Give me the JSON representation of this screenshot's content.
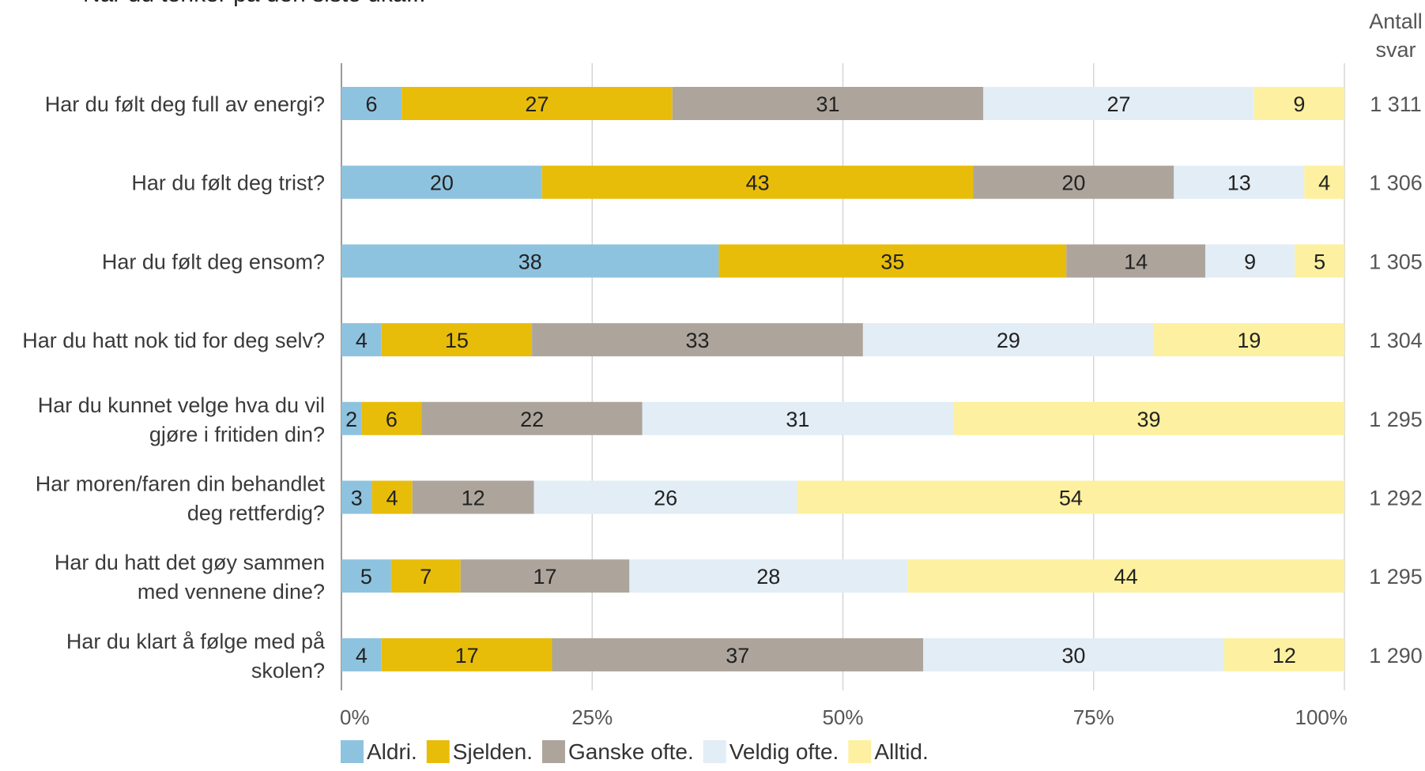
{
  "chart_data": {
    "type": "bar",
    "orientation": "horizontal",
    "stacked": true,
    "title": "Når du tenker på den siste uka...",
    "count_header": [
      "Antall",
      "svar"
    ],
    "categories": [
      [
        "Har du følt deg full av energi?"
      ],
      [
        "Har du følt deg trist?"
      ],
      [
        "Har du følt deg ensom?"
      ],
      [
        "Har du hatt nok tid for deg selv?"
      ],
      [
        "Har du kunnet velge hva du vil",
        "gjøre i fritiden din?"
      ],
      [
        "Har moren/faren din behandlet",
        "deg rettferdig?"
      ],
      [
        "Har du hatt det gøy sammen",
        "med vennene dine?"
      ],
      [
        "Har du klart å følge med på",
        "skolen?"
      ]
    ],
    "counts": [
      "1 311",
      "1 306",
      "1 305",
      "1 304",
      "1 295",
      "1 292",
      "1 295",
      "1 290"
    ],
    "series": [
      {
        "name": "Aldri.",
        "color": "#8ec3df",
        "values": [
          6,
          20,
          38,
          4,
          2,
          3,
          5,
          4
        ]
      },
      {
        "name": "Sjelden.",
        "color": "#e8bd0a",
        "values": [
          27,
          43,
          35,
          15,
          6,
          4,
          7,
          17
        ]
      },
      {
        "name": "Ganske ofte.",
        "color": "#ada59c",
        "values": [
          31,
          20,
          14,
          33,
          22,
          12,
          17,
          37
        ]
      },
      {
        "name": "Veldig ofte.",
        "color": "#e2edf6",
        "values": [
          27,
          13,
          9,
          29,
          31,
          26,
          28,
          30
        ]
      },
      {
        "name": "Alltid.",
        "color": "#fdf0a0",
        "values": [
          9,
          4,
          5,
          19,
          39,
          54,
          44,
          12
        ]
      }
    ],
    "xlim": [
      0,
      100
    ],
    "xticks": [
      "0%",
      "25%",
      "50%",
      "75%",
      "100%"
    ],
    "grid": true,
    "legend_position": "bottom"
  }
}
